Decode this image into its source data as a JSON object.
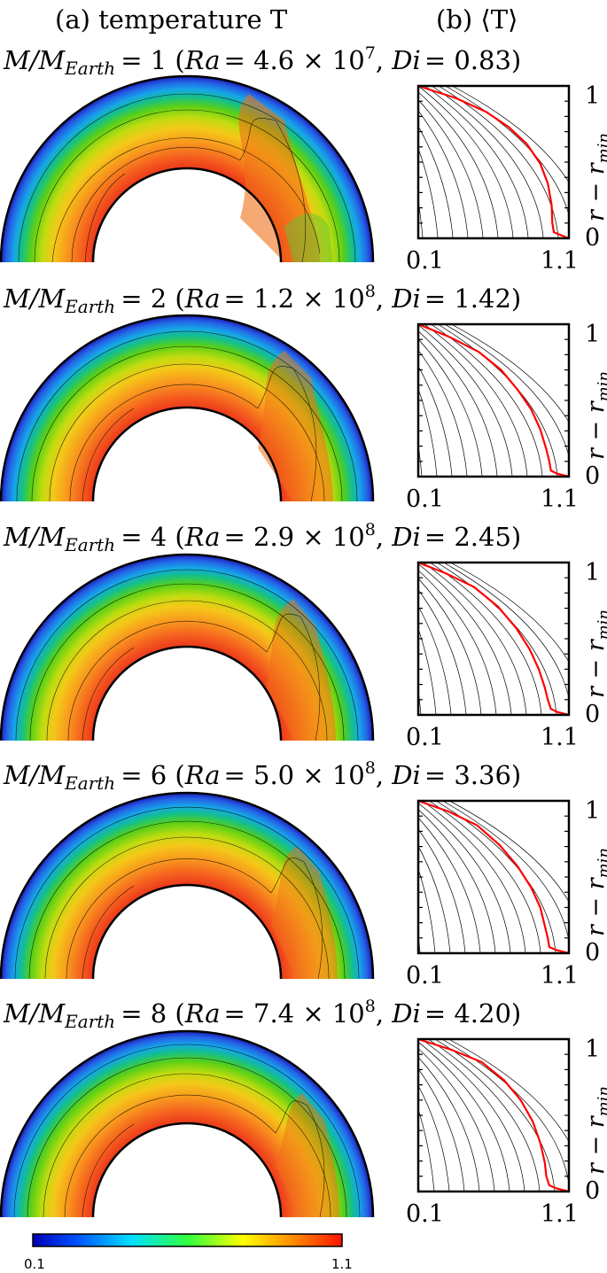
{
  "header": {
    "left_title": "(a) temperature T",
    "right_title": "(b) ⟨T⟩"
  },
  "panels": [
    {
      "title": {
        "ratio": "M/M",
        "sub": "Earth",
        "mass": "= 1 (",
        "ra_label": "Ra",
        "ra_val": "= 4.6 × 10",
        "ra_exp": "7",
        "di_label": "Di",
        "di_val": "= 0.83)"
      }
    },
    {
      "title": {
        "ratio": "M/M",
        "sub": "Earth",
        "mass": "= 2 (",
        "ra_label": "Ra",
        "ra_val": "= 1.2 × 10",
        "ra_exp": "8",
        "di_label": "Di",
        "di_val": "= 1.42)"
      }
    },
    {
      "title": {
        "ratio": "M/M",
        "sub": "Earth",
        "mass": "= 4 (",
        "ra_label": "Ra",
        "ra_val": "= 2.9 × 10",
        "ra_exp": "8",
        "di_label": "Di",
        "di_val": "= 2.45)"
      }
    },
    {
      "title": {
        "ratio": "M/M",
        "sub": "Earth",
        "mass": "= 6 (",
        "ra_label": "Ra",
        "ra_val": "= 5.0 × 10",
        "ra_exp": "8",
        "di_label": "Di",
        "di_val": "= 3.36)"
      }
    },
    {
      "title": {
        "ratio": "M/M",
        "sub": "Earth",
        "mass": "= 8 (",
        "ra_label": "Ra",
        "ra_val": "= 7.4 × 10",
        "ra_exp": "8",
        "di_label": "Di",
        "di_val": "= 4.20)"
      }
    }
  ],
  "axis_labels": {
    "y_main": "r − r",
    "y_sub": "min"
  },
  "colorbar": {
    "min_label": "0.1",
    "max_label": "1.1",
    "colormap": "jet"
  },
  "colors": {
    "profile": "#ff0000",
    "axes": "#000000",
    "isotherm": "#000000"
  },
  "chart_data": [
    {
      "type": "line",
      "xlim": [
        0.1,
        1.1
      ],
      "ylim": [
        0,
        1
      ],
      "xticks": [
        "0.1",
        "1.1"
      ],
      "yticks": [
        "0",
        "1"
      ],
      "series": [
        {
          "x": [
            0.1,
            0.35,
            0.55,
            0.7,
            0.82,
            0.91,
            0.96,
            0.985,
            0.99,
            1.0,
            1.05,
            1.1
          ],
          "y": [
            1.0,
            0.92,
            0.83,
            0.73,
            0.62,
            0.49,
            0.36,
            0.22,
            0.1,
            0.04,
            0.02,
            0.0
          ]
        }
      ]
    },
    {
      "type": "line",
      "xlim": [
        0.1,
        1.1
      ],
      "ylim": [
        0,
        1
      ],
      "xticks": [
        "0.1",
        "1.1"
      ],
      "yticks": [
        "0",
        "1"
      ],
      "series": [
        {
          "x": [
            0.1,
            0.3,
            0.5,
            0.65,
            0.76,
            0.85,
            0.91,
            0.95,
            0.97,
            0.98,
            1.02,
            1.1
          ],
          "y": [
            1.0,
            0.92,
            0.82,
            0.7,
            0.57,
            0.44,
            0.31,
            0.18,
            0.1,
            0.04,
            0.02,
            0.0
          ]
        }
      ]
    },
    {
      "type": "line",
      "xlim": [
        0.1,
        1.1
      ],
      "ylim": [
        0,
        1
      ],
      "xticks": [
        "0.1",
        "1.1"
      ],
      "yticks": [
        "0",
        "1"
      ],
      "series": [
        {
          "x": [
            0.1,
            0.28,
            0.47,
            0.63,
            0.75,
            0.84,
            0.9,
            0.94,
            0.96,
            0.98,
            1.02,
            1.1
          ],
          "y": [
            1.0,
            0.93,
            0.84,
            0.71,
            0.57,
            0.43,
            0.3,
            0.18,
            0.1,
            0.04,
            0.02,
            0.0
          ]
        }
      ]
    },
    {
      "type": "line",
      "xlim": [
        0.1,
        1.1
      ],
      "ylim": [
        0,
        1
      ],
      "xticks": [
        "0.1",
        "1.1"
      ],
      "yticks": [
        "0",
        "1"
      ],
      "series": [
        {
          "x": [
            0.1,
            0.3,
            0.49,
            0.64,
            0.76,
            0.85,
            0.91,
            0.94,
            0.96,
            0.97,
            1.02,
            1.1
          ],
          "y": [
            1.0,
            0.93,
            0.84,
            0.71,
            0.57,
            0.43,
            0.3,
            0.18,
            0.1,
            0.04,
            0.02,
            0.0
          ]
        }
      ]
    },
    {
      "type": "line",
      "xlim": [
        0.1,
        1.1
      ],
      "ylim": [
        0,
        1
      ],
      "xticks": [
        "0.1",
        "1.1"
      ],
      "yticks": [
        "0",
        "1"
      ],
      "series": [
        {
          "x": [
            0.1,
            0.32,
            0.52,
            0.67,
            0.78,
            0.86,
            0.91,
            0.94,
            0.95,
            0.97,
            1.02,
            1.1
          ],
          "y": [
            1.0,
            0.93,
            0.85,
            0.73,
            0.6,
            0.46,
            0.32,
            0.19,
            0.1,
            0.04,
            0.02,
            0.0
          ]
        }
      ]
    }
  ]
}
